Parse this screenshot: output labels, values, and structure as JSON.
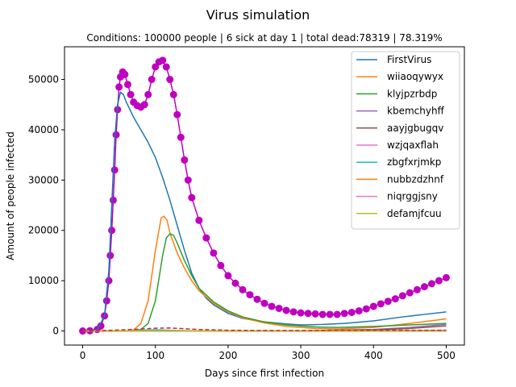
{
  "chart_data": {
    "type": "line",
    "title": "Virus simulation",
    "subtitle": "Conditions: 100000 people | 6 sick at day 1 | total dead:78319 | 78.319%",
    "xlabel": "Days since first infection",
    "ylabel": "Amount of people infected",
    "xlim": [
      -25,
      525
    ],
    "ylim": [
      -2800,
      56500
    ],
    "x_ticks": [
      0,
      100,
      200,
      300,
      400,
      500
    ],
    "y_ticks": [
      0,
      10000,
      20000,
      30000,
      40000,
      50000
    ],
    "grid": false,
    "legend_position": "top-right",
    "series": [
      {
        "name": "FirstVirus",
        "color": "#1f77b4",
        "style": "solid",
        "points": [
          [
            0,
            0
          ],
          [
            20,
            200
          ],
          [
            30,
            3000
          ],
          [
            36,
            12000
          ],
          [
            40,
            25000
          ],
          [
            44,
            38000
          ],
          [
            48,
            45000
          ],
          [
            52,
            47500
          ],
          [
            56,
            47000
          ],
          [
            60,
            45500
          ],
          [
            70,
            42500
          ],
          [
            80,
            40000
          ],
          [
            90,
            37500
          ],
          [
            100,
            34500
          ],
          [
            110,
            30500
          ],
          [
            120,
            26000
          ],
          [
            130,
            21000
          ],
          [
            140,
            16000
          ],
          [
            150,
            11500
          ],
          [
            160,
            8500
          ],
          [
            170,
            6500
          ],
          [
            180,
            5200
          ],
          [
            200,
            3500
          ],
          [
            220,
            2500
          ],
          [
            250,
            1800
          ],
          [
            280,
            1400
          ],
          [
            300,
            1200
          ],
          [
            330,
            1300
          ],
          [
            360,
            1500
          ],
          [
            400,
            2000
          ],
          [
            440,
            2800
          ],
          [
            470,
            3300
          ],
          [
            500,
            3800
          ]
        ]
      },
      {
        "name": "wiiaoqywyx",
        "color": "#ff7f0e",
        "style": "solid",
        "points": [
          [
            0,
            0
          ],
          [
            60,
            0
          ],
          [
            70,
            200
          ],
          [
            80,
            1500
          ],
          [
            90,
            6000
          ],
          [
            100,
            16000
          ],
          [
            108,
            22500
          ],
          [
            112,
            22800
          ],
          [
            116,
            22000
          ],
          [
            120,
            19500
          ],
          [
            130,
            15500
          ],
          [
            140,
            12500
          ],
          [
            150,
            10000
          ],
          [
            160,
            8000
          ],
          [
            180,
            5500
          ],
          [
            200,
            3800
          ],
          [
            220,
            2600
          ],
          [
            250,
            1600
          ],
          [
            280,
            900
          ],
          [
            320,
            500
          ],
          [
            350,
            400
          ],
          [
            400,
            700
          ],
          [
            450,
            1500
          ],
          [
            500,
            2400
          ]
        ]
      },
      {
        "name": "klyjpzrbdp",
        "color": "#2ca02c",
        "style": "solid",
        "points": [
          [
            0,
            0
          ],
          [
            70,
            0
          ],
          [
            80,
            300
          ],
          [
            90,
            1500
          ],
          [
            100,
            6000
          ],
          [
            110,
            15000
          ],
          [
            115,
            18500
          ],
          [
            120,
            19300
          ],
          [
            125,
            19000
          ],
          [
            130,
            17500
          ],
          [
            140,
            14000
          ],
          [
            150,
            11000
          ],
          [
            160,
            8500
          ],
          [
            180,
            5800
          ],
          [
            200,
            4000
          ],
          [
            220,
            2800
          ],
          [
            250,
            1800
          ],
          [
            280,
            1200
          ],
          [
            320,
            800
          ],
          [
            350,
            700
          ],
          [
            400,
            900
          ],
          [
            450,
            1200
          ],
          [
            500,
            1500
          ]
        ]
      },
      {
        "name": "kbemchyhff",
        "color": "#9467bd",
        "style": "solid",
        "points": [
          [
            0,
            0
          ],
          [
            100,
            0
          ],
          [
            200,
            0
          ],
          [
            300,
            50
          ],
          [
            400,
            300
          ],
          [
            450,
            700
          ],
          [
            500,
            1300
          ]
        ]
      },
      {
        "name": "aayjgbugqv",
        "color": "#8c564b",
        "style": "solid",
        "points": [
          [
            0,
            0
          ],
          [
            100,
            0
          ],
          [
            200,
            0
          ],
          [
            300,
            30
          ],
          [
            400,
            200
          ],
          [
            450,
            500
          ],
          [
            500,
            1000
          ]
        ]
      },
      {
        "name": "wzjqaxflah",
        "color": "#e377c2",
        "style": "solid",
        "points": [
          [
            0,
            0
          ],
          [
            100,
            0
          ],
          [
            200,
            0
          ],
          [
            300,
            0
          ],
          [
            400,
            50
          ],
          [
            500,
            150
          ]
        ]
      },
      {
        "name": "zbgfxrjmkp",
        "color": "#17becf",
        "style": "solid",
        "points": [
          [
            0,
            0
          ],
          [
            50,
            0
          ],
          [
            80,
            150
          ],
          [
            100,
            250
          ],
          [
            120,
            150
          ],
          [
            150,
            50
          ],
          [
            200,
            0
          ],
          [
            300,
            0
          ],
          [
            500,
            0
          ]
        ]
      },
      {
        "name": "nubbzdzhnf",
        "color": "#ff7f0e",
        "style": "solid",
        "points": [
          [
            0,
            0
          ],
          [
            100,
            0
          ],
          [
            200,
            0
          ],
          [
            300,
            0
          ],
          [
            400,
            0
          ],
          [
            500,
            50
          ]
        ]
      },
      {
        "name": "niqrggjsny",
        "color": "#e377c2",
        "style": "solid",
        "points": [
          [
            0,
            0
          ],
          [
            100,
            0
          ],
          [
            200,
            0
          ],
          [
            300,
            0
          ],
          [
            400,
            0
          ],
          [
            500,
            0
          ]
        ]
      },
      {
        "name": "defamjfcuu",
        "color": "#bcbd22",
        "style": "solid",
        "points": [
          [
            0,
            0
          ],
          [
            100,
            0
          ],
          [
            200,
            0
          ],
          [
            300,
            0
          ],
          [
            400,
            0
          ],
          [
            500,
            0
          ]
        ]
      },
      {
        "name": "",
        "color": "#d62728",
        "style": "dashed",
        "points": [
          [
            0,
            0
          ],
          [
            40,
            150
          ],
          [
            60,
            250
          ],
          [
            80,
            400
          ],
          [
            100,
            550
          ],
          [
            120,
            600
          ],
          [
            140,
            450
          ],
          [
            160,
            300
          ],
          [
            200,
            150
          ],
          [
            250,
            100
          ],
          [
            300,
            100
          ],
          [
            350,
            150
          ],
          [
            400,
            150
          ],
          [
            450,
            150
          ],
          [
            500,
            150
          ]
        ]
      },
      {
        "name": "",
        "color": "#bf00bf",
        "style": "markers",
        "points": [
          [
            0,
            0
          ],
          [
            10,
            50
          ],
          [
            20,
            300
          ],
          [
            25,
            1000
          ],
          [
            30,
            3000
          ],
          [
            33,
            6000
          ],
          [
            36,
            10000
          ],
          [
            38,
            15000
          ],
          [
            40,
            20000
          ],
          [
            42,
            26000
          ],
          [
            44,
            32000
          ],
          [
            46,
            39000
          ],
          [
            48,
            44000
          ],
          [
            50,
            48500
          ],
          [
            52,
            50500
          ],
          [
            55,
            51500
          ],
          [
            58,
            51000
          ],
          [
            62,
            49000
          ],
          [
            66,
            47000
          ],
          [
            70,
            45500
          ],
          [
            75,
            44800
          ],
          [
            80,
            44500
          ],
          [
            85,
            45000
          ],
          [
            90,
            47000
          ],
          [
            95,
            50000
          ],
          [
            100,
            52500
          ],
          [
            105,
            53500
          ],
          [
            110,
            53800
          ],
          [
            115,
            52500
          ],
          [
            120,
            50000
          ],
          [
            125,
            47000
          ],
          [
            130,
            43000
          ],
          [
            135,
            38500
          ],
          [
            140,
            34000
          ],
          [
            145,
            30000
          ],
          [
            150,
            26500
          ],
          [
            160,
            22000
          ],
          [
            170,
            18500
          ],
          [
            180,
            15500
          ],
          [
            190,
            13000
          ],
          [
            200,
            11000
          ],
          [
            210,
            9500
          ],
          [
            220,
            8200
          ],
          [
            230,
            7200
          ],
          [
            240,
            6300
          ],
          [
            250,
            5500
          ],
          [
            260,
            4900
          ],
          [
            270,
            4500
          ],
          [
            280,
            4100
          ],
          [
            290,
            3800
          ],
          [
            300,
            3600
          ],
          [
            310,
            3500
          ],
          [
            320,
            3400
          ],
          [
            330,
            3300
          ],
          [
            340,
            3300
          ],
          [
            350,
            3300
          ],
          [
            360,
            3500
          ],
          [
            370,
            3700
          ],
          [
            380,
            4000
          ],
          [
            390,
            4400
          ],
          [
            400,
            4900
          ],
          [
            410,
            5400
          ],
          [
            420,
            5900
          ],
          [
            430,
            6400
          ],
          [
            440,
            7000
          ],
          [
            450,
            7600
          ],
          [
            460,
            8200
          ],
          [
            470,
            8800
          ],
          [
            480,
            9400
          ],
          [
            490,
            10000
          ],
          [
            500,
            10600
          ]
        ]
      }
    ]
  }
}
